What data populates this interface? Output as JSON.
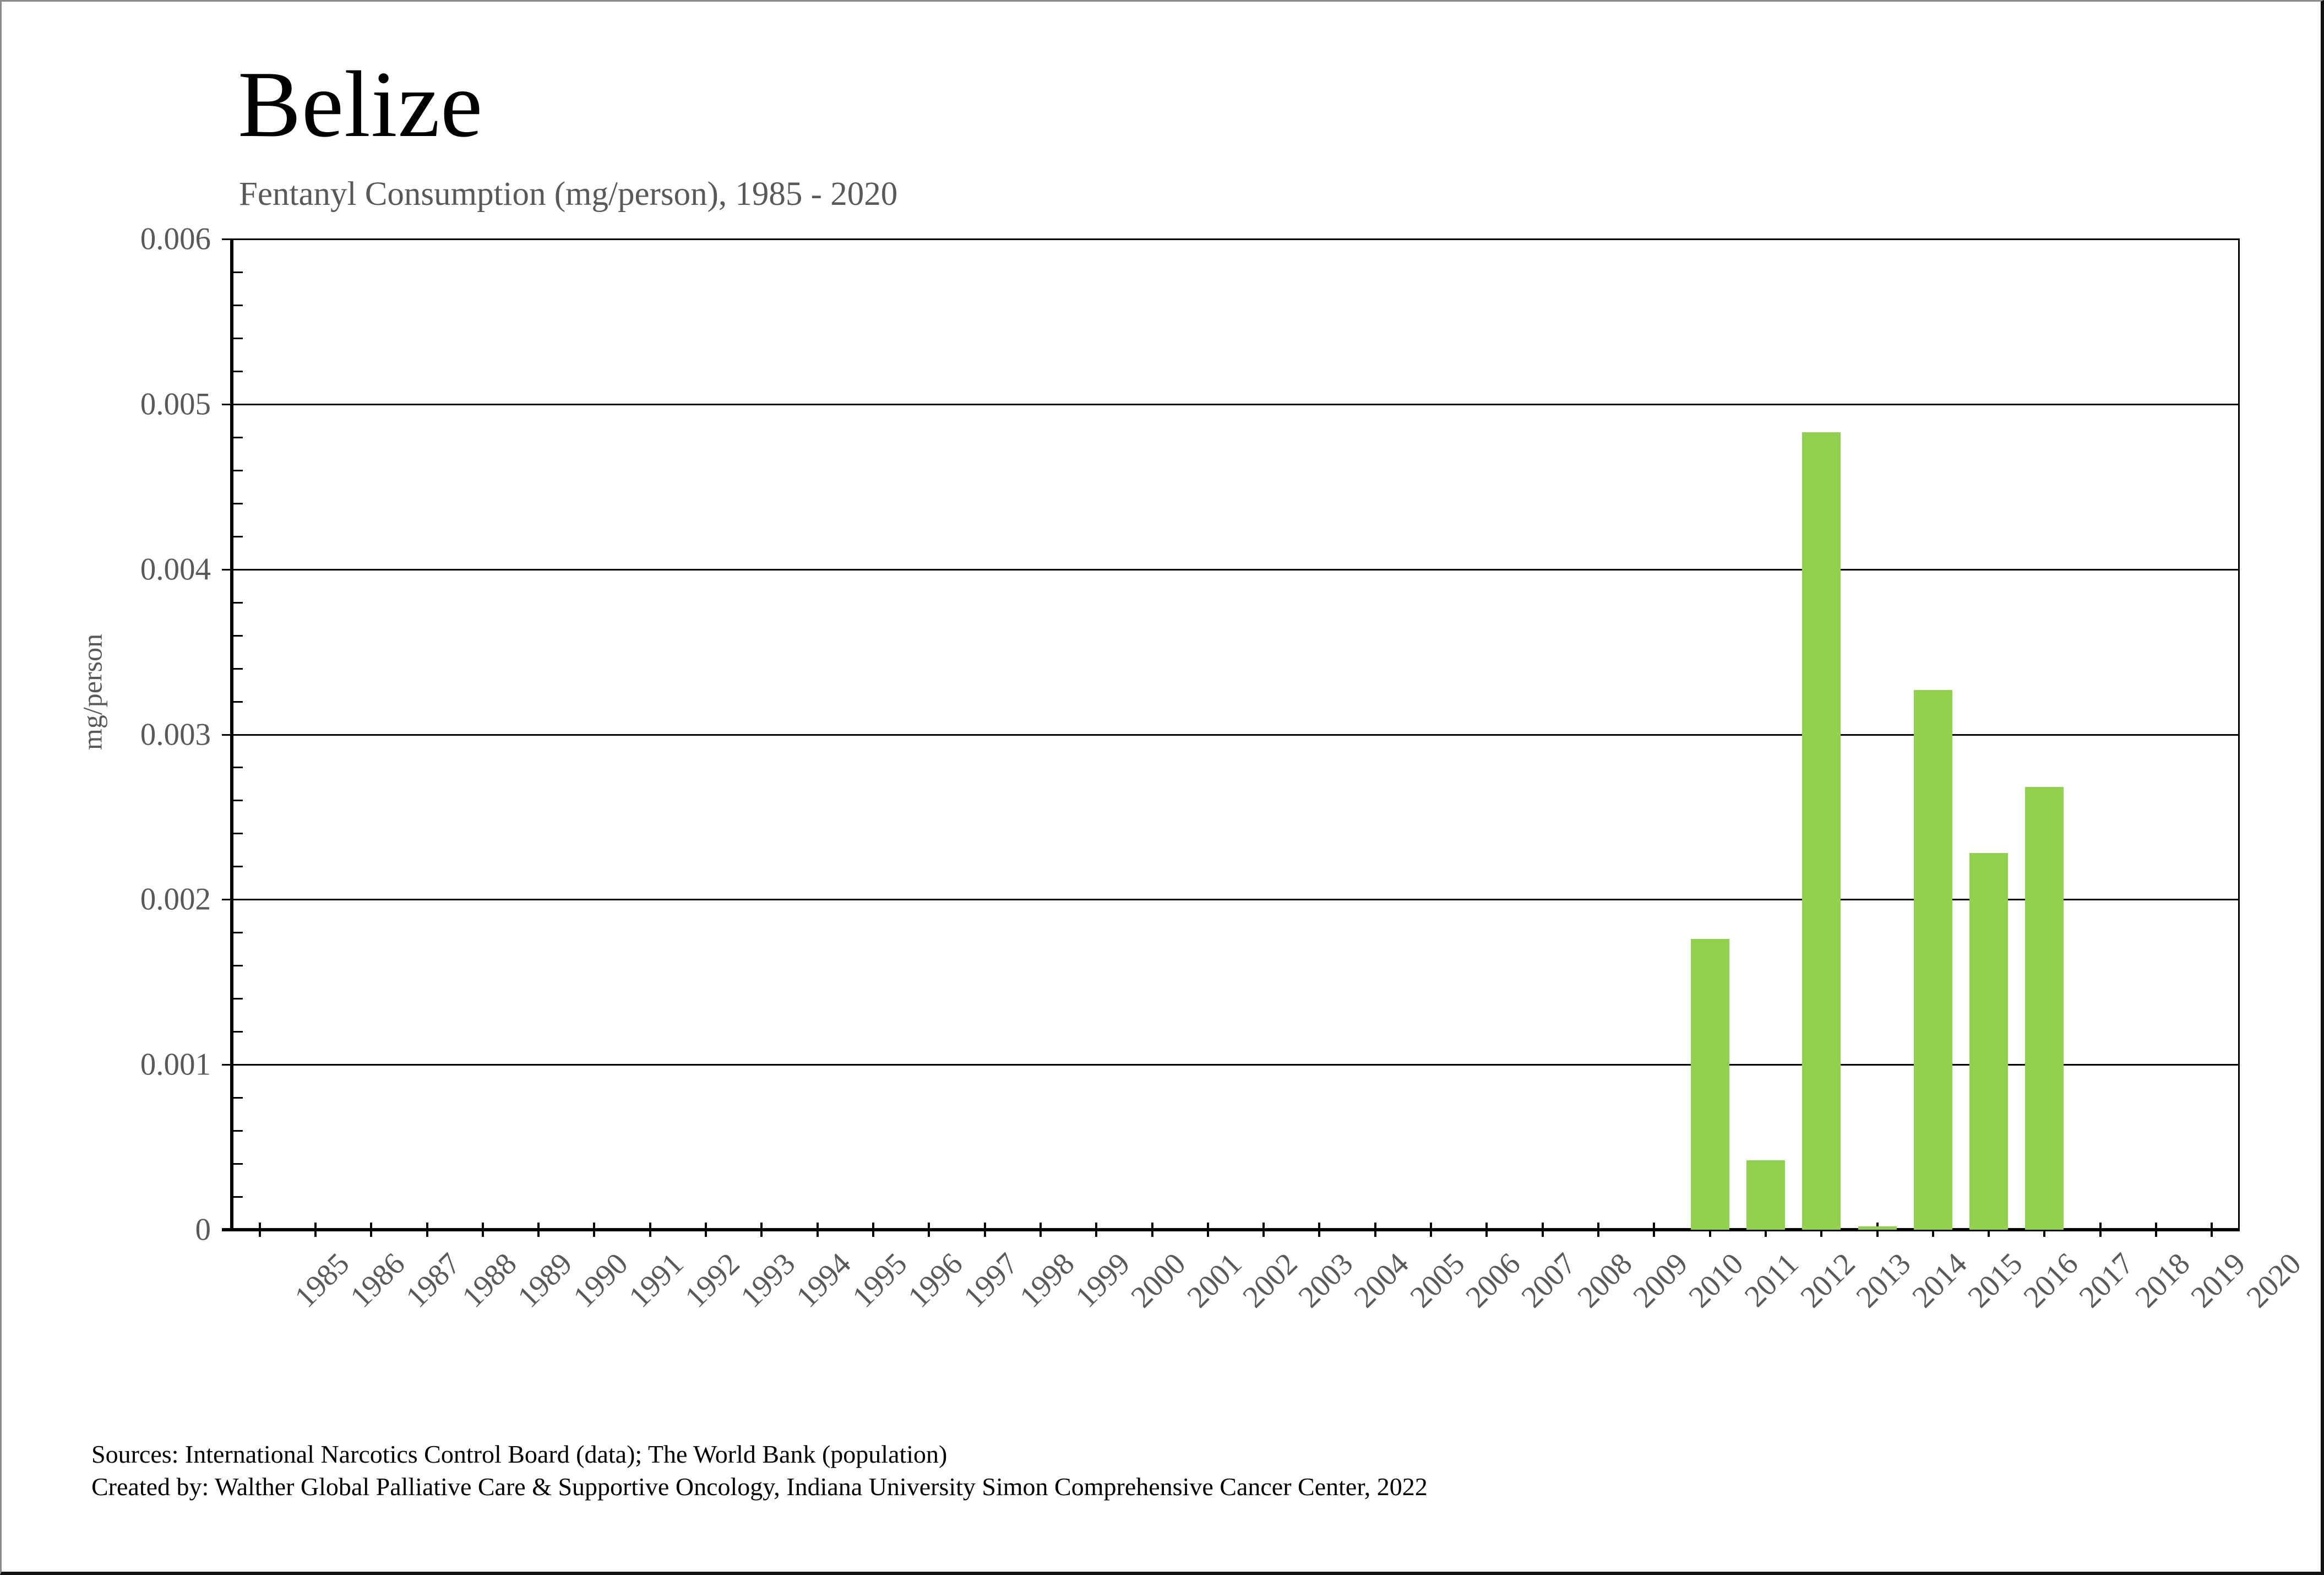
{
  "header": {
    "title": "Belize",
    "subtitle": "Fentanyl Consumption (mg/person), 1985 - 2020"
  },
  "footer": {
    "source_line1": "Sources: International Narcotics Control Board (data); The World Bank (population)",
    "source_line2": "Created by: Walther Global Palliative Care & Supportive Oncology, Indiana University Simon Comprehensive Cancer Center, 2022"
  },
  "colors": {
    "bar": "#92D050",
    "axis": "#000000",
    "muted_text": "#595959",
    "title_text": "#000000"
  },
  "chart_data": {
    "type": "bar",
    "title": "Belize",
    "subtitle": "Fentanyl Consumption (mg/person), 1985 - 2020",
    "xlabel": "",
    "ylabel": "mg/person",
    "ylim": [
      0,
      0.006
    ],
    "y_major_step": 0.001,
    "y_minor_step": 0.0002,
    "y_tick_labels": [
      "0",
      "0.001",
      "0.002",
      "0.003",
      "0.004",
      "0.005",
      "0.006"
    ],
    "grid": "horizontal-major",
    "legend_position": "none",
    "bar_color": "#92D050",
    "categories": [
      "1985",
      "1986",
      "1987",
      "1988",
      "1989",
      "1990",
      "1991",
      "1992",
      "1993",
      "1994",
      "1995",
      "1996",
      "1997",
      "1998",
      "1999",
      "2000",
      "2001",
      "2002",
      "2003",
      "2004",
      "2005",
      "2006",
      "2007",
      "2008",
      "2009",
      "2010",
      "2011",
      "2012",
      "2013",
      "2014",
      "2015",
      "2016",
      "2017",
      "2018",
      "2019",
      "2020"
    ],
    "values": [
      0,
      0,
      0,
      0,
      0,
      0,
      0,
      0,
      0,
      0,
      0,
      0,
      0,
      0,
      0,
      0,
      0,
      0,
      0,
      0,
      0,
      0,
      0,
      0,
      0,
      0,
      0.00176,
      0.00042,
      0.00483,
      2e-05,
      0.00327,
      0.00228,
      0.00268,
      0,
      0,
      0
    ]
  }
}
